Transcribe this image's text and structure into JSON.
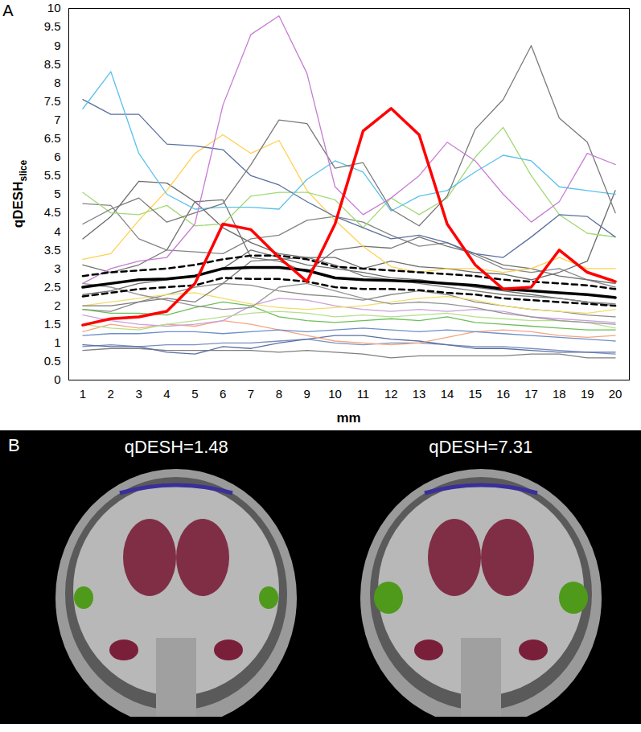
{
  "chart_data": {
    "type": "line",
    "panel": "A",
    "x_label": "mm",
    "y_label": "qDESH",
    "y_label_subscript": "slice",
    "x": [
      1,
      2,
      3,
      4,
      5,
      6,
      7,
      8,
      9,
      10,
      11,
      12,
      13,
      14,
      15,
      16,
      17,
      18,
      19,
      20
    ],
    "xlim": [
      0.5,
      20.5
    ],
    "xticks": [
      1,
      2,
      3,
      4,
      5,
      6,
      7,
      8,
      9,
      10,
      11,
      12,
      13,
      14,
      15,
      16,
      17,
      18,
      19,
      20
    ],
    "ylim": [
      0,
      10
    ],
    "yticks": [
      0,
      0.5,
      1,
      1.5,
      2,
      2.5,
      3,
      3.5,
      4,
      4.5,
      5,
      5.5,
      6,
      6.5,
      7,
      7.5,
      8,
      8.5,
      9,
      9.5,
      10
    ],
    "series": [
      {
        "color": "#7a8fc0",
        "values": [
          0.9,
          0.95,
          0.9,
          0.95,
          0.95,
          1.0,
          1.0,
          1.05,
          1.1,
          1.0,
          0.95,
          1.0,
          1.0,
          0.95,
          0.9,
          0.9,
          0.85,
          0.8,
          0.75,
          0.7
        ]
      },
      {
        "color": "#7f7f7f",
        "values": [
          0.8,
          0.85,
          0.85,
          0.8,
          0.8,
          0.8,
          0.8,
          0.75,
          0.8,
          0.75,
          0.7,
          0.6,
          0.65,
          0.65,
          0.65,
          0.65,
          0.7,
          0.7,
          0.6,
          0.6
        ]
      },
      {
        "color": "#5a6fa0",
        "values": [
          0.95,
          0.9,
          0.9,
          0.75,
          0.7,
          0.9,
          0.85,
          1.0,
          1.1,
          1.2,
          1.2,
          1.1,
          1.05,
          0.95,
          0.85,
          0.85,
          0.8,
          0.75,
          0.75,
          0.75
        ]
      },
      {
        "color": "#f4a582",
        "values": [
          1.3,
          1.5,
          1.4,
          1.5,
          1.45,
          1.6,
          1.5,
          1.35,
          1.2,
          1.05,
          1.0,
          0.95,
          1.0,
          1.15,
          1.3,
          1.35,
          1.3,
          1.2,
          1.15,
          1.2
        ]
      },
      {
        "color": "#8a8a8a",
        "values": [
          1.9,
          1.85,
          2.1,
          2.3,
          2.5,
          2.6,
          2.55,
          2.4,
          2.3,
          2.25,
          2.15,
          2.3,
          2.4,
          2.3,
          2.1,
          2.0,
          1.9,
          1.85,
          1.75,
          1.7
        ]
      },
      {
        "color": "#c9a0dc",
        "values": [
          1.75,
          1.6,
          1.5,
          1.45,
          1.5,
          1.6,
          2.0,
          2.2,
          2.15,
          2.0,
          1.9,
          1.85,
          1.9,
          1.85,
          1.9,
          1.85,
          1.7,
          1.65,
          1.6,
          1.55
        ]
      },
      {
        "color": "#6bbf59",
        "values": [
          1.9,
          1.8,
          1.8,
          1.75,
          1.95,
          2.1,
          2.0,
          1.7,
          1.6,
          1.55,
          1.6,
          1.65,
          1.6,
          1.7,
          1.55,
          1.5,
          1.45,
          1.4,
          1.35,
          1.35
        ]
      },
      {
        "color": "#b5e08a",
        "values": [
          1.5,
          1.4,
          1.35,
          1.5,
          1.6,
          1.7,
          1.8,
          1.85,
          1.8,
          1.7,
          1.75,
          1.7,
          1.75,
          1.8,
          1.7,
          1.65,
          1.6,
          1.6,
          1.55,
          1.4
        ]
      },
      {
        "color": "#6e6e6e",
        "values": [
          2.3,
          2.4,
          2.6,
          2.7,
          2.8,
          3.0,
          3.5,
          3.3,
          3.1,
          3.0,
          2.9,
          2.75,
          2.7,
          2.6,
          2.5,
          2.4,
          2.3,
          2.2,
          2.1,
          2.0
        ]
      },
      {
        "color": "#f2dc6b",
        "values": [
          2.0,
          2.1,
          2.2,
          2.3,
          2.35,
          2.2,
          2.05,
          1.95,
          1.9,
          1.95,
          2.0,
          2.1,
          2.2,
          2.25,
          2.15,
          2.0,
          1.9,
          1.85,
          1.8,
          1.9
        ]
      },
      {
        "color": "#959595",
        "values": [
          2.6,
          2.5,
          2.3,
          2.15,
          2.0,
          1.9,
          1.95,
          2.5,
          2.6,
          2.4,
          2.2,
          2.05,
          2.1,
          2.05,
          1.95,
          1.8,
          1.7,
          1.6,
          1.55,
          1.5
        ]
      },
      {
        "color": "#6d8fc9",
        "values": [
          1.2,
          1.25,
          1.25,
          1.3,
          1.3,
          1.25,
          1.3,
          1.35,
          1.3,
          1.35,
          1.4,
          1.35,
          1.3,
          1.35,
          1.3,
          1.25,
          1.2,
          1.15,
          1.1,
          1.05
        ]
      },
      {
        "color": "#7d7d7d",
        "values": [
          2.0,
          2.0,
          2.1,
          2.2,
          2.1,
          2.6,
          3.2,
          3.25,
          3.3,
          3.1,
          2.8,
          2.7,
          2.6,
          2.5,
          2.4,
          2.3,
          2.25,
          2.2,
          2.1,
          2.05
        ]
      },
      {
        "color": "#6a6a6a",
        "values": [
          3.8,
          4.4,
          5.35,
          5.3,
          4.8,
          4.1,
          3.7,
          3.4,
          3.3,
          3.3,
          3.0,
          3.2,
          3.05,
          3.0,
          2.9,
          2.85,
          2.7,
          2.9,
          3.2,
          5.1
        ]
      },
      {
        "color": "#858585",
        "values": [
          4.75,
          4.7,
          3.8,
          3.5,
          3.45,
          3.4,
          3.8,
          3.9,
          4.3,
          4.4,
          4.25,
          3.9,
          3.6,
          3.7,
          3.35,
          3.0,
          2.9,
          3.0,
          2.7,
          2.5
        ]
      },
      {
        "color": "#737373",
        "values": [
          3.1,
          2.9,
          3.1,
          3.5,
          4.8,
          4.85,
          3.3,
          3.2,
          2.9,
          3.5,
          3.6,
          3.55,
          3.85,
          3.6,
          3.4,
          3.1,
          3.0,
          2.8,
          2.7,
          2.6
        ]
      },
      {
        "color": "#ffd04f",
        "values": [
          3.25,
          3.4,
          4.3,
          5.1,
          6.1,
          6.6,
          6.1,
          6.45,
          5.1,
          4.3,
          3.6,
          3.05,
          2.9,
          3.0,
          3.0,
          2.9,
          3.0,
          3.3,
          3.0,
          3.0
        ]
      },
      {
        "color": "#a3d977",
        "values": [
          5.05,
          4.5,
          4.45,
          4.7,
          4.15,
          4.2,
          4.95,
          5.05,
          5.05,
          4.85,
          4.1,
          4.9,
          4.45,
          4.9,
          6.0,
          6.8,
          5.5,
          4.45,
          3.95,
          3.85
        ]
      },
      {
        "color": "#5a6fa0",
        "values": [
          7.55,
          7.15,
          7.15,
          6.35,
          6.3,
          6.2,
          5.5,
          5.25,
          4.8,
          4.4,
          4.1,
          3.8,
          3.9,
          3.7,
          3.4,
          3.3,
          3.85,
          4.45,
          4.4,
          3.85
        ]
      },
      {
        "color": "#5bc0eb",
        "values": [
          7.3,
          8.3,
          6.1,
          5.0,
          4.6,
          4.65,
          4.65,
          4.6,
          5.4,
          5.9,
          5.6,
          4.55,
          4.95,
          5.1,
          5.6,
          6.05,
          5.9,
          5.2,
          5.1,
          5.0
        ]
      },
      {
        "color": "#7a7a7a",
        "values": [
          4.2,
          4.6,
          4.9,
          4.25,
          4.5,
          4.75,
          5.8,
          7.0,
          6.9,
          5.7,
          5.85,
          4.6,
          4.15,
          4.95,
          6.75,
          7.55,
          9.0,
          7.05,
          6.4,
          4.5
        ]
      },
      {
        "color": "#c77cd3",
        "values": [
          2.6,
          3.0,
          3.2,
          3.3,
          4.2,
          7.4,
          9.3,
          9.8,
          8.25,
          5.2,
          4.45,
          4.9,
          5.5,
          6.4,
          5.9,
          5.0,
          4.25,
          4.8,
          6.1,
          5.8
        ]
      },
      {
        "color": "#000000",
        "line_style": "dashed",
        "values": [
          2.8,
          2.9,
          2.95,
          3.0,
          3.1,
          3.25,
          3.35,
          3.35,
          3.25,
          3.05,
          3.0,
          2.95,
          2.9,
          2.85,
          2.8,
          2.7,
          2.65,
          2.6,
          2.55,
          2.45
        ]
      },
      {
        "color": "#000000",
        "line_style": "dashed",
        "values": [
          2.25,
          2.35,
          2.45,
          2.5,
          2.55,
          2.75,
          2.72,
          2.72,
          2.65,
          2.5,
          2.45,
          2.45,
          2.42,
          2.35,
          2.3,
          2.2,
          2.15,
          2.1,
          2.05,
          2.0
        ]
      },
      {
        "color": "#000000",
        "line_style": "solid",
        "values": [
          2.5,
          2.6,
          2.7,
          2.72,
          2.8,
          3.0,
          3.03,
          3.03,
          2.95,
          2.75,
          2.7,
          2.68,
          2.65,
          2.6,
          2.55,
          2.45,
          2.4,
          2.35,
          2.3,
          2.22
        ]
      },
      {
        "color": "#ff0000",
        "line_style": "solid",
        "values": [
          1.48,
          1.65,
          1.7,
          1.85,
          2.6,
          4.2,
          4.05,
          3.3,
          2.65,
          4.2,
          6.7,
          7.31,
          6.6,
          4.2,
          3.1,
          2.45,
          2.5,
          3.5,
          2.9,
          2.65
        ]
      }
    ]
  },
  "panel_b": {
    "panel": "B",
    "images": [
      {
        "title": "qDESH=1.48"
      },
      {
        "title": "qDESH=7.31"
      }
    ]
  }
}
